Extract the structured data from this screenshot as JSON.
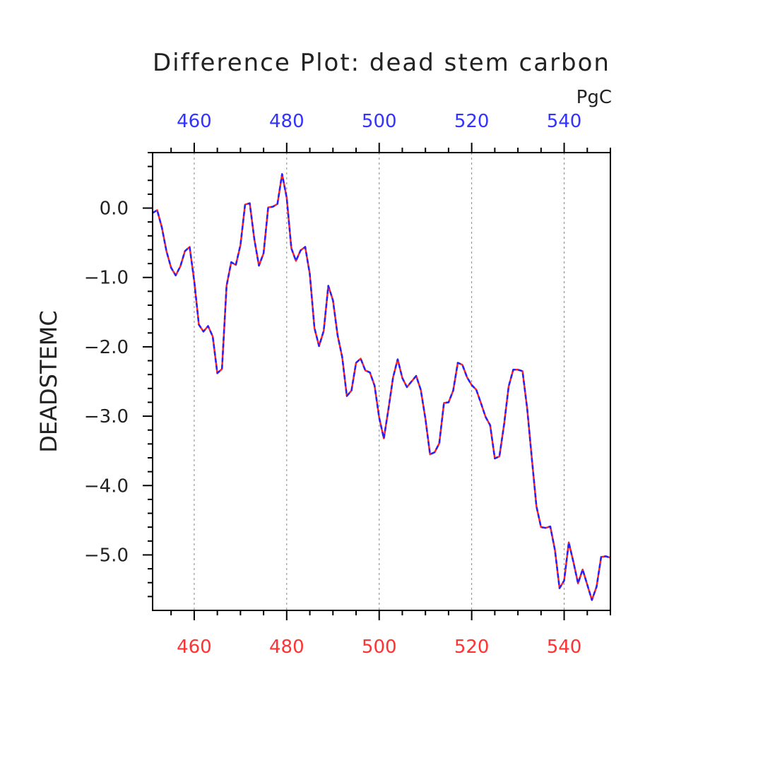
{
  "chart_data": {
    "type": "line",
    "title": "Difference Plot: dead stem carbon",
    "units": "PgC",
    "ylabel": "DEADSTEMC",
    "xlabel": "",
    "xlim": [
      451,
      550
    ],
    "ylim": [
      -5.8,
      0.8
    ],
    "x_ticks": [
      460,
      480,
      500,
      520,
      540
    ],
    "y_ticks": [
      0.0,
      -1.0,
      -2.0,
      -3.0,
      -4.0,
      -5.0
    ],
    "y_tick_labels": [
      "0.0",
      "−1.0",
      "−2.0",
      "−3.0",
      "−4.0",
      "−5.0"
    ],
    "grid": "x dashed vertical lines",
    "colors": {
      "bottom_axis_labels": "#ff3333",
      "top_axis_labels": "#3333ff",
      "series_a": "#ff2222",
      "series_b": "#2222ff"
    },
    "series": [
      {
        "x": [
          451,
          452,
          453,
          454,
          455,
          456,
          457,
          458,
          459,
          460,
          461,
          462,
          463,
          464,
          465,
          466,
          467,
          468,
          469,
          470,
          471,
          472,
          473,
          474,
          475,
          476,
          477,
          478,
          479,
          480,
          481,
          482,
          483,
          484,
          485,
          486,
          487,
          488,
          489,
          490,
          491,
          492,
          493,
          494,
          495,
          496,
          497,
          498,
          499,
          500,
          501,
          502,
          503,
          504,
          505,
          506,
          507,
          508,
          509,
          510,
          511,
          512,
          513,
          514,
          515,
          516,
          517,
          518,
          519,
          520,
          521,
          522,
          523,
          524,
          525,
          526,
          527,
          528,
          529,
          530,
          531,
          532,
          533,
          534,
          535,
          536,
          537,
          538,
          539,
          540,
          541,
          542,
          543,
          544,
          545,
          546,
          547,
          548,
          549,
          550
        ],
        "values": [
          -0.07,
          -0.03,
          -0.28,
          -0.62,
          -0.86,
          -0.97,
          -0.84,
          -0.62,
          -0.56,
          -1.05,
          -1.68,
          -1.78,
          -1.7,
          -1.85,
          -2.38,
          -2.32,
          -1.12,
          -0.78,
          -0.82,
          -0.53,
          0.05,
          0.07,
          -0.45,
          -0.83,
          -0.65,
          0.01,
          0.02,
          0.06,
          0.49,
          0.15,
          -0.58,
          -0.76,
          -0.61,
          -0.56,
          -0.95,
          -1.73,
          -1.99,
          -1.77,
          -1.12,
          -1.33,
          -1.83,
          -2.15,
          -2.71,
          -2.63,
          -2.23,
          -2.17,
          -2.34,
          -2.37,
          -2.56,
          -3.02,
          -3.32,
          -2.9,
          -2.44,
          -2.18,
          -2.45,
          -2.58,
          -2.5,
          -2.42,
          -2.62,
          -3.04,
          -3.55,
          -3.52,
          -3.39,
          -2.81,
          -2.8,
          -2.63,
          -2.23,
          -2.26,
          -2.44,
          -2.55,
          -2.62,
          -2.81,
          -3.01,
          -3.13,
          -3.61,
          -3.58,
          -3.12,
          -2.57,
          -2.33,
          -2.33,
          -2.35,
          -2.89,
          -3.6,
          -4.3,
          -4.6,
          -4.61,
          -4.59,
          -4.93,
          -5.48,
          -5.37,
          -4.82,
          -5.1,
          -5.41,
          -5.21,
          -5.43,
          -5.65,
          -5.46,
          -5.03,
          -5.02,
          -5.04
        ]
      }
    ]
  }
}
